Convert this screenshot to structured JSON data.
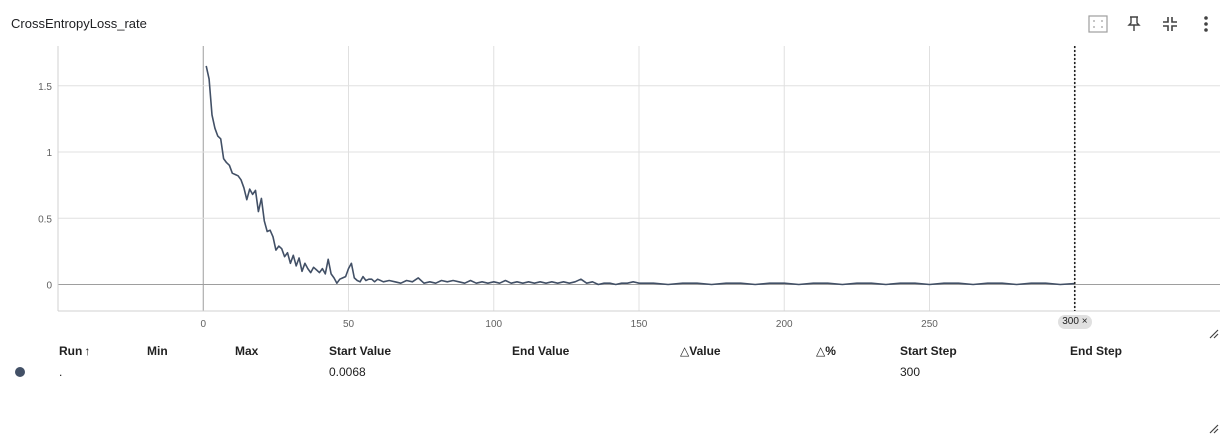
{
  "card": {
    "title": "CrossEntropyLoss_rate",
    "toolbar": [
      {
        "name": "fit-domain-icon"
      },
      {
        "name": "pin-icon"
      },
      {
        "name": "collapse-icon"
      },
      {
        "name": "more-vert-icon"
      }
    ]
  },
  "chart_data": {
    "type": "line",
    "title": "CrossEntropyLoss_rate",
    "xlabel": "",
    "ylabel": "",
    "xlim": [
      -50,
      350
    ],
    "ylim": [
      -0.2,
      1.8
    ],
    "x_ticks": [
      "0",
      "50",
      "100",
      "150",
      "200",
      "250",
      "300"
    ],
    "y_ticks": [
      "0",
      "0.5",
      "1",
      "1.5"
    ],
    "grid": true,
    "series": [
      {
        "color": "#425066",
        "points": [
          [
            1,
            1.65
          ],
          [
            2,
            1.55
          ],
          [
            3,
            1.28
          ],
          [
            4,
            1.18
          ],
          [
            5,
            1.12
          ],
          [
            6,
            1.1
          ],
          [
            7,
            0.95
          ],
          [
            8,
            0.92
          ],
          [
            9,
            0.9
          ],
          [
            10,
            0.84
          ],
          [
            11,
            0.83
          ],
          [
            12,
            0.82
          ],
          [
            13,
            0.79
          ],
          [
            14,
            0.73
          ],
          [
            15,
            0.64
          ],
          [
            16,
            0.72
          ],
          [
            17,
            0.68
          ],
          [
            18,
            0.71
          ],
          [
            19,
            0.55
          ],
          [
            20,
            0.65
          ],
          [
            21,
            0.48
          ],
          [
            22,
            0.4
          ],
          [
            23,
            0.41
          ],
          [
            24,
            0.36
          ],
          [
            25,
            0.26
          ],
          [
            26,
            0.29
          ],
          [
            27,
            0.27
          ],
          [
            28,
            0.21
          ],
          [
            29,
            0.24
          ],
          [
            30,
            0.16
          ],
          [
            31,
            0.22
          ],
          [
            32,
            0.14
          ],
          [
            33,
            0.2
          ],
          [
            34,
            0.1
          ],
          [
            35,
            0.16
          ],
          [
            36,
            0.12
          ],
          [
            37,
            0.09
          ],
          [
            38,
            0.13
          ],
          [
            39,
            0.11
          ],
          [
            40,
            0.09
          ],
          [
            41,
            0.12
          ],
          [
            42,
            0.08
          ],
          [
            43,
            0.19
          ],
          [
            44,
            0.08
          ],
          [
            45,
            0.05
          ],
          [
            46,
            0.01
          ],
          [
            47,
            0.04
          ],
          [
            48,
            0.05
          ],
          [
            49,
            0.06
          ],
          [
            50,
            0.12
          ],
          [
            51,
            0.16
          ],
          [
            52,
            0.05
          ],
          [
            53,
            0.03
          ],
          [
            54,
            0.02
          ],
          [
            55,
            0.06
          ],
          [
            56,
            0.03
          ],
          [
            57,
            0.04
          ],
          [
            58,
            0.04
          ],
          [
            59,
            0.02
          ],
          [
            60,
            0.04
          ],
          [
            62,
            0.02
          ],
          [
            64,
            0.03
          ],
          [
            66,
            0.02
          ],
          [
            68,
            0.01
          ],
          [
            70,
            0.03
          ],
          [
            72,
            0.02
          ],
          [
            74,
            0.05
          ],
          [
            76,
            0.01
          ],
          [
            78,
            0.02
          ],
          [
            80,
            0.01
          ],
          [
            82,
            0.03
          ],
          [
            84,
            0.02
          ],
          [
            86,
            0.03
          ],
          [
            88,
            0.02
          ],
          [
            90,
            0.01
          ],
          [
            92,
            0.03
          ],
          [
            94,
            0.01
          ],
          [
            96,
            0.02
          ],
          [
            98,
            0.01
          ],
          [
            100,
            0.02
          ],
          [
            102,
            0.01
          ],
          [
            104,
            0.03
          ],
          [
            106,
            0.01
          ],
          [
            108,
            0.02
          ],
          [
            110,
            0.01
          ],
          [
            112,
            0.02
          ],
          [
            114,
            0.01
          ],
          [
            116,
            0.02
          ],
          [
            118,
            0.01
          ],
          [
            120,
            0.02
          ],
          [
            122,
            0.01
          ],
          [
            124,
            0.02
          ],
          [
            126,
            0.01
          ],
          [
            128,
            0.02
          ],
          [
            130,
            0.04
          ],
          [
            132,
            0.01
          ],
          [
            134,
            0.02
          ],
          [
            136,
            0.0
          ],
          [
            138,
            0.01
          ],
          [
            140,
            0.01
          ],
          [
            142,
            0.0
          ],
          [
            144,
            0.01
          ],
          [
            146,
            0.01
          ],
          [
            148,
            0.02
          ],
          [
            150,
            0.01
          ],
          [
            155,
            0.01
          ],
          [
            160,
            0.0
          ],
          [
            165,
            0.01
          ],
          [
            170,
            0.01
          ],
          [
            175,
            0.0
          ],
          [
            180,
            0.01
          ],
          [
            185,
            0.01
          ],
          [
            190,
            0.0
          ],
          [
            195,
            0.01
          ],
          [
            200,
            0.01
          ],
          [
            205,
            0.0
          ],
          [
            210,
            0.01
          ],
          [
            215,
            0.01
          ],
          [
            220,
            0.0
          ],
          [
            225,
            0.01
          ],
          [
            230,
            0.01
          ],
          [
            235,
            0.0
          ],
          [
            240,
            0.01
          ],
          [
            245,
            0.01
          ],
          [
            250,
            0.0
          ],
          [
            255,
            0.01
          ],
          [
            260,
            0.01
          ],
          [
            265,
            0.0
          ],
          [
            270,
            0.01
          ],
          [
            275,
            0.01
          ],
          [
            280,
            0.0
          ],
          [
            285,
            0.01
          ],
          [
            290,
            0.01
          ],
          [
            295,
            0.0
          ],
          [
            300,
            0.0068
          ]
        ]
      }
    ],
    "hover_step": 300
  },
  "hover_chip": {
    "label": "300",
    "close": "×"
  },
  "table": {
    "headers": {
      "run": "Run",
      "sort_arrow": "↑",
      "min": "Min",
      "max": "Max",
      "start_value": "Start Value",
      "end_value": "End Value",
      "delta_value": "△Value",
      "delta_percent": "△%",
      "start_step": "Start Step",
      "end_step": "End Step"
    },
    "rows": [
      {
        "run_color": "#425066",
        "run": ".",
        "min": "",
        "max": "",
        "start_value": "0.0068",
        "end_value": "",
        "delta_value": "",
        "delta_percent": "",
        "start_step": "300",
        "end_step": ""
      }
    ]
  }
}
